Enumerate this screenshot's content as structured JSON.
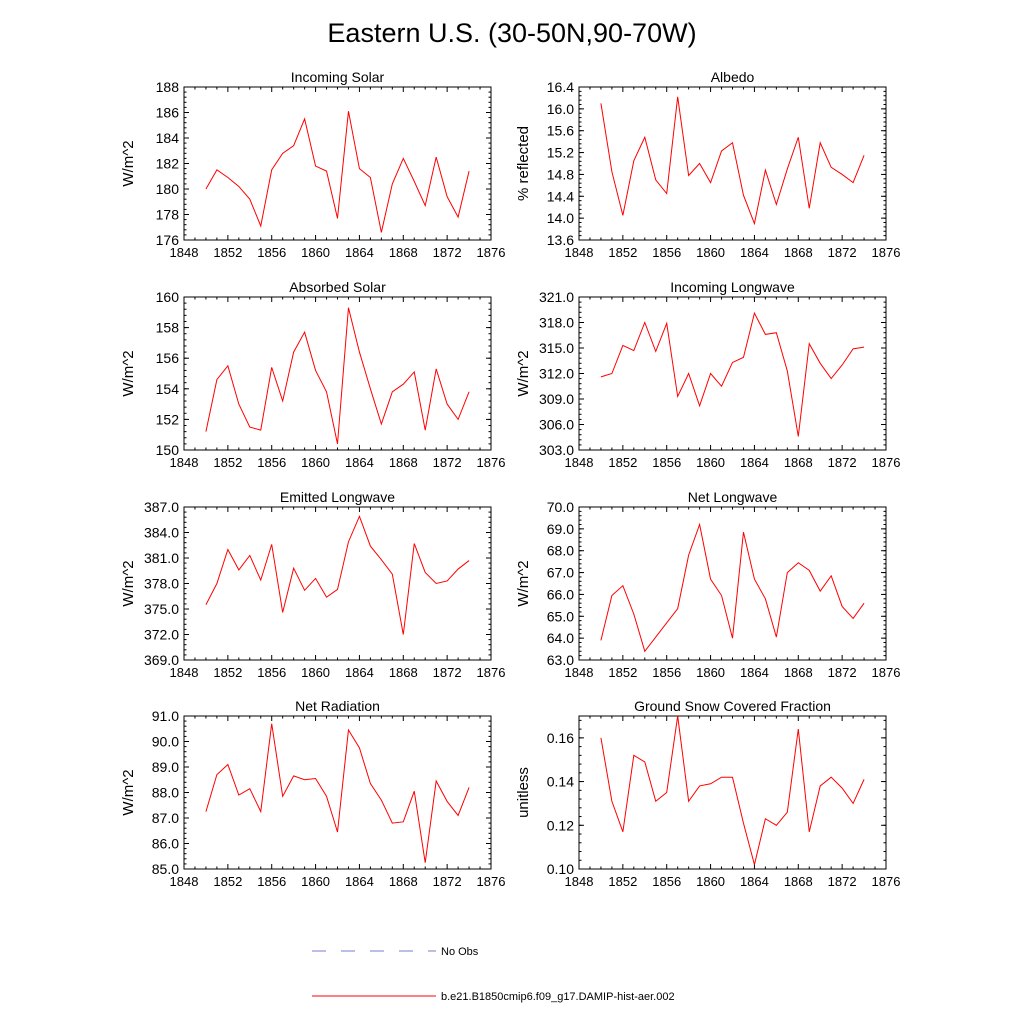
{
  "figure": {
    "title": "Eastern U.S. (30-50N,90-70W)"
  },
  "chart_data": [
    {
      "type": "line",
      "title": "Incoming Solar",
      "ylabel": "W/m^2",
      "xlim": [
        1848,
        1876
      ],
      "ylim": [
        176,
        188
      ],
      "xticks": [
        "1848",
        "1852",
        "1856",
        "1860",
        "1864",
        "1868",
        "1872",
        "1876"
      ],
      "yticks": [
        "176",
        "178",
        "180",
        "182",
        "184",
        "186",
        "188"
      ],
      "x": [
        1850,
        1851,
        1852,
        1853,
        1854,
        1855,
        1856,
        1857,
        1858,
        1859,
        1860,
        1861,
        1862,
        1863,
        1864,
        1865,
        1866,
        1867,
        1868,
        1869,
        1870,
        1871,
        1872,
        1873,
        1874
      ],
      "series": [
        {
          "color": "#ff0000",
          "values": [
            180.0,
            181.5,
            180.9,
            180.2,
            179.2,
            177.1,
            181.5,
            182.8,
            183.4,
            185.5,
            181.8,
            181.4,
            177.7,
            186.1,
            181.6,
            180.9,
            176.6,
            180.4,
            182.4,
            180.6,
            178.7,
            182.5,
            179.4,
            177.8,
            181.4
          ]
        }
      ]
    },
    {
      "type": "line",
      "title": "Albedo",
      "ylabel": "% reflected",
      "xlim": [
        1848,
        1876
      ],
      "ylim": [
        13.6,
        16.4
      ],
      "xticks": [
        "1848",
        "1852",
        "1856",
        "1860",
        "1864",
        "1868",
        "1872",
        "1876"
      ],
      "yticks": [
        "13.6",
        "14.0",
        "14.4",
        "14.8",
        "15.2",
        "15.6",
        "16.0",
        "16.4"
      ],
      "x": [
        1850,
        1851,
        1852,
        1853,
        1854,
        1855,
        1856,
        1857,
        1858,
        1859,
        1860,
        1861,
        1862,
        1863,
        1864,
        1865,
        1866,
        1867,
        1868,
        1869,
        1870,
        1871,
        1872,
        1873,
        1874
      ],
      "series": [
        {
          "color": "#ff0000",
          "values": [
            16.1,
            14.85,
            14.05,
            15.05,
            15.48,
            14.7,
            14.45,
            16.22,
            14.78,
            15.0,
            14.65,
            15.23,
            15.38,
            14.42,
            13.9,
            14.88,
            14.25,
            14.9,
            15.48,
            14.18,
            15.38,
            14.93,
            14.8,
            14.65,
            15.15
          ]
        }
      ]
    },
    {
      "type": "line",
      "title": "Absorbed Solar",
      "ylabel": "W/m^2",
      "xlim": [
        1848,
        1876
      ],
      "ylim": [
        150,
        160
      ],
      "xticks": [
        "1848",
        "1852",
        "1856",
        "1860",
        "1864",
        "1868",
        "1872",
        "1876"
      ],
      "yticks": [
        "150",
        "152",
        "154",
        "156",
        "158",
        "160"
      ],
      "x": [
        1850,
        1851,
        1852,
        1853,
        1854,
        1855,
        1856,
        1857,
        1858,
        1859,
        1860,
        1861,
        1862,
        1863,
        1864,
        1865,
        1866,
        1867,
        1868,
        1869,
        1870,
        1871,
        1872,
        1873,
        1874
      ],
      "series": [
        {
          "color": "#ff0000",
          "values": [
            151.2,
            154.6,
            155.5,
            153.0,
            151.5,
            151.3,
            155.4,
            153.2,
            156.4,
            157.7,
            155.2,
            153.8,
            150.4,
            159.3,
            156.4,
            154.0,
            151.7,
            153.8,
            154.3,
            155.1,
            151.3,
            155.3,
            153.0,
            152.0,
            153.8
          ]
        }
      ]
    },
    {
      "type": "line",
      "title": "Incoming Longwave",
      "ylabel": "W/m^2",
      "xlim": [
        1848,
        1876
      ],
      "ylim": [
        303.0,
        321.0
      ],
      "xticks": [
        "1848",
        "1852",
        "1856",
        "1860",
        "1864",
        "1868",
        "1872",
        "1876"
      ],
      "yticks": [
        "303.0",
        "306.0",
        "309.0",
        "312.0",
        "315.0",
        "318.0",
        "321.0"
      ],
      "x": [
        1850,
        1851,
        1852,
        1853,
        1854,
        1855,
        1856,
        1857,
        1858,
        1859,
        1860,
        1861,
        1862,
        1863,
        1864,
        1865,
        1866,
        1867,
        1868,
        1869,
        1870,
        1871,
        1872,
        1873,
        1874
      ],
      "series": [
        {
          "color": "#ff0000",
          "values": [
            311.6,
            312.0,
            315.3,
            314.7,
            318.0,
            314.6,
            317.9,
            309.3,
            312.0,
            308.2,
            312.0,
            310.5,
            313.3,
            313.9,
            319.1,
            316.6,
            316.8,
            312.3,
            304.6,
            315.5,
            313.2,
            311.4,
            313.0,
            314.9,
            315.1
          ]
        }
      ]
    },
    {
      "type": "line",
      "title": "Emitted Longwave",
      "ylabel": "W/m^2",
      "xlim": [
        1848,
        1876
      ],
      "ylim": [
        369.0,
        387.0
      ],
      "xticks": [
        "1848",
        "1852",
        "1856",
        "1860",
        "1864",
        "1868",
        "1872",
        "1876"
      ],
      "yticks": [
        "369.0",
        "372.0",
        "375.0",
        "378.0",
        "381.0",
        "384.0",
        "387.0"
      ],
      "x": [
        1850,
        1851,
        1852,
        1853,
        1854,
        1855,
        1856,
        1857,
        1858,
        1859,
        1860,
        1861,
        1862,
        1863,
        1864,
        1865,
        1866,
        1867,
        1868,
        1869,
        1870,
        1871,
        1872,
        1873,
        1874
      ],
      "series": [
        {
          "color": "#ff0000",
          "values": [
            375.5,
            378.0,
            382.0,
            379.6,
            381.3,
            378.4,
            382.6,
            374.6,
            379.8,
            377.2,
            378.6,
            376.4,
            377.3,
            382.9,
            385.9,
            382.4,
            380.8,
            379.1,
            372.0,
            382.7,
            379.3,
            378.0,
            378.3,
            379.7,
            380.7
          ]
        }
      ]
    },
    {
      "type": "line",
      "title": "Net Longwave",
      "ylabel": "W/m^2",
      "xlim": [
        1848,
        1876
      ],
      "ylim": [
        63.0,
        70.0
      ],
      "xticks": [
        "1848",
        "1852",
        "1856",
        "1860",
        "1864",
        "1868",
        "1872",
        "1876"
      ],
      "yticks": [
        "63.0",
        "64.0",
        "65.0",
        "66.0",
        "67.0",
        "68.0",
        "69.0",
        "70.0"
      ],
      "x": [
        1850,
        1851,
        1852,
        1853,
        1854,
        1855,
        1856,
        1857,
        1858,
        1859,
        1860,
        1861,
        1862,
        1863,
        1864,
        1865,
        1866,
        1867,
        1868,
        1869,
        1870,
        1871,
        1872,
        1873,
        1874
      ],
      "series": [
        {
          "color": "#ff0000",
          "values": [
            63.9,
            65.95,
            66.4,
            65.1,
            63.4,
            64.05,
            64.7,
            65.35,
            67.8,
            69.2,
            66.7,
            65.95,
            64.0,
            68.85,
            66.7,
            65.8,
            64.05,
            67.0,
            67.45,
            67.1,
            66.15,
            66.85,
            65.45,
            64.9,
            65.6
          ]
        }
      ]
    },
    {
      "type": "line",
      "title": "Net Radiation",
      "ylabel": "W/m^2",
      "xlim": [
        1848,
        1876
      ],
      "ylim": [
        85.0,
        91.0
      ],
      "xticks": [
        "1848",
        "1852",
        "1856",
        "1860",
        "1864",
        "1868",
        "1872",
        "1876"
      ],
      "yticks": [
        "85.0",
        "86.0",
        "87.0",
        "88.0",
        "89.0",
        "90.0",
        "91.0"
      ],
      "x": [
        1850,
        1851,
        1852,
        1853,
        1854,
        1855,
        1856,
        1857,
        1858,
        1859,
        1860,
        1861,
        1862,
        1863,
        1864,
        1865,
        1866,
        1867,
        1868,
        1869,
        1870,
        1871,
        1872,
        1873,
        1874
      ],
      "series": [
        {
          "color": "#ff0000",
          "values": [
            87.25,
            88.7,
            89.1,
            87.9,
            88.15,
            87.25,
            90.7,
            87.85,
            88.65,
            88.5,
            88.55,
            87.85,
            86.45,
            90.45,
            89.75,
            88.35,
            87.7,
            86.8,
            86.85,
            88.05,
            85.25,
            88.45,
            87.65,
            87.1,
            88.2
          ]
        }
      ]
    },
    {
      "type": "line",
      "title": "Ground Snow Covered Fraction",
      "ylabel": "unitless",
      "xlim": [
        1848,
        1876
      ],
      "ylim": [
        0.1,
        0.17
      ],
      "xticks": [
        "1848",
        "1852",
        "1856",
        "1860",
        "1864",
        "1868",
        "1872",
        "1876"
      ],
      "yticks": [
        "0.10",
        "0.12",
        "0.14",
        "0.16"
      ],
      "x": [
        1850,
        1851,
        1852,
        1853,
        1854,
        1855,
        1856,
        1857,
        1858,
        1859,
        1860,
        1861,
        1862,
        1863,
        1864,
        1865,
        1866,
        1867,
        1868,
        1869,
        1870,
        1871,
        1872,
        1873,
        1874
      ],
      "series": [
        {
          "color": "#ff0000",
          "values": [
            0.16,
            0.131,
            0.117,
            0.152,
            0.149,
            0.131,
            0.135,
            0.17,
            0.131,
            0.138,
            0.139,
            0.142,
            0.142,
            0.121,
            0.102,
            0.123,
            0.12,
            0.126,
            0.164,
            0.117,
            0.138,
            0.142,
            0.137,
            0.13,
            0.141
          ]
        }
      ]
    }
  ],
  "legend": {
    "items": [
      {
        "label": "No Obs",
        "color": "#7b7bd8",
        "dash": true
      },
      {
        "label": "b.e21.B1850cmip6.f09_g17.DAMIP-hist-aer.002",
        "color": "#ff0000",
        "dash": false
      }
    ]
  }
}
